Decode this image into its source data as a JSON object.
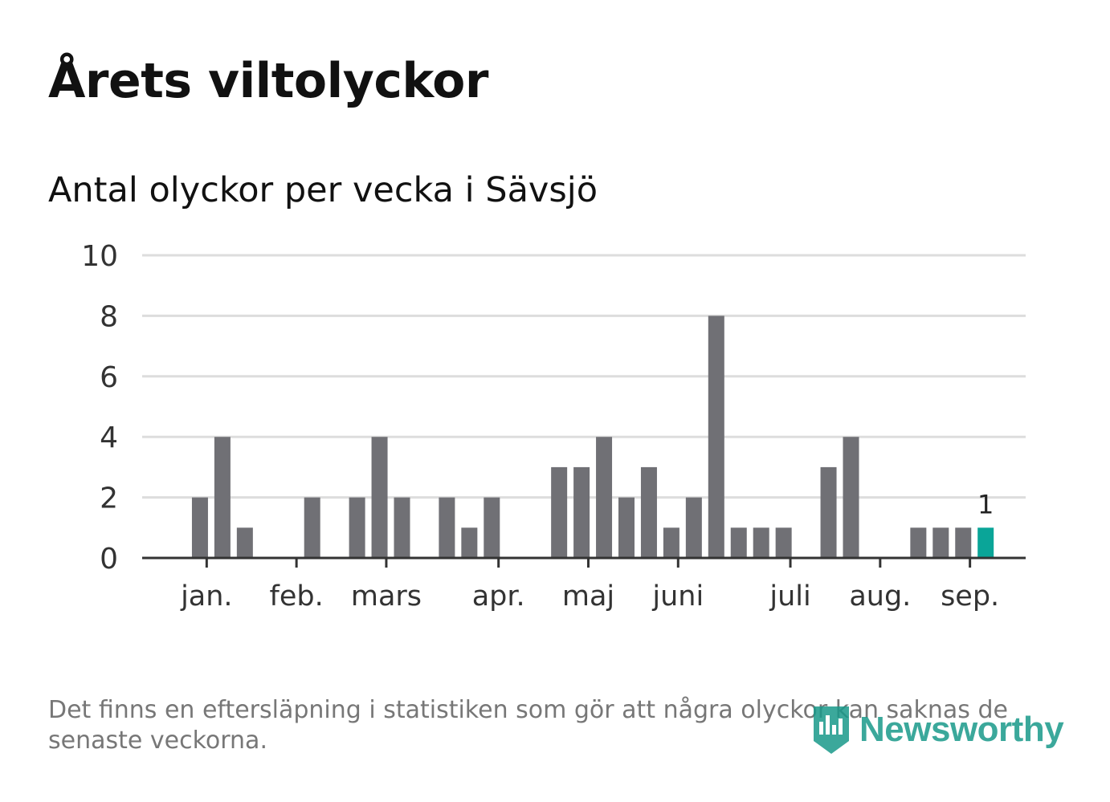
{
  "title": "Årets viltolyckor",
  "subtitle": "Antal olyckor per vecka i Sävsjö",
  "note": "Det finns en eftersläpning i statistiken som gör att några olyckor kan saknas de senaste veckorna.",
  "brand": "Newsworthy",
  "colors": {
    "bar": "#707075",
    "highlight": "#0aa598",
    "grid": "#dddddd",
    "axis": "#333333"
  },
  "chart_data": {
    "type": "bar",
    "title": "Årets viltolyckor",
    "subtitle": "Antal olyckor per vecka i Sävsjö",
    "xlabel": "",
    "ylabel": "",
    "ylim": [
      0,
      10
    ],
    "yticks": [
      0,
      2,
      4,
      6,
      8,
      10
    ],
    "grid": true,
    "weeks": [
      1,
      2,
      3,
      4,
      5,
      6,
      7,
      8,
      9,
      10,
      11,
      12,
      13,
      14,
      15,
      16,
      17,
      18,
      19,
      20,
      21,
      22,
      23,
      24,
      25,
      26,
      27,
      28,
      29,
      30,
      31,
      32,
      33,
      34,
      35,
      36,
      37,
      38,
      39
    ],
    "values": [
      0,
      2,
      4,
      1,
      0,
      0,
      2,
      0,
      2,
      4,
      2,
      0,
      2,
      1,
      2,
      0,
      0,
      3,
      3,
      4,
      2,
      3,
      1,
      2,
      8,
      1,
      1,
      1,
      0,
      3,
      4,
      0,
      0,
      1,
      1,
      1,
      1,
      0,
      0
    ],
    "highlight_week": 37,
    "highlight_label": "1",
    "month_ticks": [
      {
        "label": "jan.",
        "week": 2.3
      },
      {
        "label": "feb.",
        "week": 6.3
      },
      {
        "label": "mars",
        "week": 10.3
      },
      {
        "label": "apr.",
        "week": 15.3
      },
      {
        "label": "maj",
        "week": 19.3
      },
      {
        "label": "juni",
        "week": 23.3
      },
      {
        "label": "juli",
        "week": 28.3
      },
      {
        "label": "aug.",
        "week": 32.3
      },
      {
        "label": "sep.",
        "week": 36.3
      }
    ]
  }
}
